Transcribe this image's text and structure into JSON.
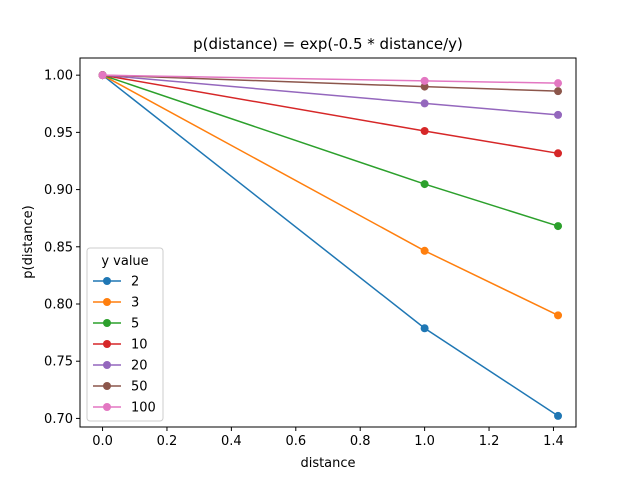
{
  "chart_data": {
    "type": "line",
    "title": "p(distance) = exp(-0.5 * distance/y)",
    "xlabel": "distance",
    "ylabel": "p(distance)",
    "xlim": [
      -0.07,
      1.47
    ],
    "ylim": [
      0.6925,
      1.015
    ],
    "xticks": [
      0.0,
      0.2,
      0.4,
      0.6,
      0.8,
      1.0,
      1.2,
      1.4
    ],
    "xtick_labels": [
      "0.0",
      "0.2",
      "0.4",
      "0.6",
      "0.8",
      "1.0",
      "1.2",
      "1.4"
    ],
    "yticks": [
      0.7,
      0.75,
      0.8,
      0.85,
      0.9,
      0.95,
      1.0
    ],
    "ytick_labels": [
      "0.70",
      "0.75",
      "0.80",
      "0.85",
      "0.90",
      "0.95",
      "1.00"
    ],
    "grid": false,
    "legend": {
      "title": "y value",
      "placement": "lower-left"
    },
    "x": [
      0.0,
      1.0,
      1.4142
    ],
    "series": [
      {
        "name": "2",
        "color": "#1f77b4",
        "values": [
          1.0,
          0.7788,
          0.7022
        ]
      },
      {
        "name": "3",
        "color": "#ff7f0e",
        "values": [
          1.0,
          0.8465,
          0.7901
        ]
      },
      {
        "name": "5",
        "color": "#2ca02c",
        "values": [
          1.0,
          0.9048,
          0.8681
        ]
      },
      {
        "name": "10",
        "color": "#d62728",
        "values": [
          1.0,
          0.9512,
          0.9317
        ]
      },
      {
        "name": "20",
        "color": "#9467bd",
        "values": [
          1.0,
          0.9753,
          0.9653
        ]
      },
      {
        "name": "50",
        "color": "#8c564b",
        "values": [
          1.0,
          0.99,
          0.986
        ]
      },
      {
        "name": "100",
        "color": "#e377c2",
        "values": [
          1.0,
          0.995,
          0.993
        ]
      }
    ]
  }
}
